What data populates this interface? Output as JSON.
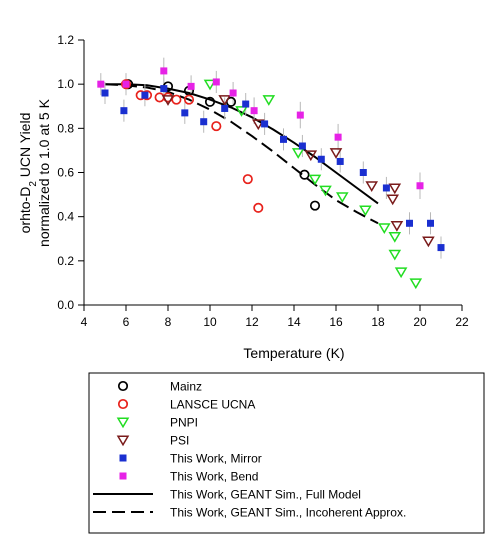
{
  "chart_data": {
    "type": "scatter",
    "title": "",
    "xlabel": "Temperature (K)",
    "ylabel_line1_pre": "orhto-D",
    "ylabel_line1_sub": "2",
    "ylabel_line1_post": " UCN Yield",
    "ylabel_line2": "normalized to 1.0 at 5 K",
    "xlim": [
      4,
      22
    ],
    "ylim": [
      0.0,
      1.2
    ],
    "xticks": [
      4,
      6,
      8,
      10,
      12,
      14,
      16,
      18,
      20,
      22
    ],
    "yticks": [
      0.0,
      0.2,
      0.4,
      0.6,
      0.8,
      1.0,
      1.2
    ],
    "ytick_labels": [
      "0.0",
      "0.2",
      "0.4",
      "0.6",
      "0.8",
      "1.0",
      "1.2"
    ],
    "grid": false,
    "legend_position": "bottom",
    "series": [
      {
        "name": "Mainz",
        "marker": "circle",
        "color": "#000000",
        "points": [
          [
            6.1,
            1.0
          ],
          [
            8.0,
            0.99
          ],
          [
            9.0,
            0.97
          ],
          [
            10.0,
            0.92
          ],
          [
            11.0,
            0.92
          ],
          [
            14.5,
            0.59
          ],
          [
            15.0,
            0.45
          ]
        ]
      },
      {
        "name": "LANSCE UCNA",
        "marker": "circle",
        "color": "#e8221c",
        "points": [
          [
            6.0,
            1.0
          ],
          [
            6.7,
            0.95
          ],
          [
            7.0,
            0.95
          ],
          [
            7.6,
            0.94
          ],
          [
            8.0,
            0.94
          ],
          [
            8.4,
            0.93
          ],
          [
            9.0,
            0.93
          ],
          [
            10.3,
            0.81
          ],
          [
            11.8,
            0.57
          ],
          [
            12.3,
            0.44
          ]
        ]
      },
      {
        "name": "PNPI",
        "marker": "triangle-down",
        "color": "#22dd22",
        "points": [
          [
            10.0,
            1.0
          ],
          [
            11.5,
            0.88
          ],
          [
            12.8,
            0.93
          ],
          [
            14.2,
            0.69
          ],
          [
            15.0,
            0.57
          ],
          [
            15.5,
            0.52
          ],
          [
            16.3,
            0.49
          ],
          [
            17.4,
            0.43
          ],
          [
            18.3,
            0.35
          ],
          [
            18.8,
            0.31
          ],
          [
            18.8,
            0.23
          ],
          [
            19.1,
            0.15
          ],
          [
            19.8,
            0.1
          ]
        ]
      },
      {
        "name": "PSI",
        "marker": "triangle-down",
        "color": "#7a1b1b",
        "points": [
          [
            8.0,
            0.93
          ],
          [
            10.7,
            0.93
          ],
          [
            12.3,
            0.82
          ],
          [
            14.8,
            0.68
          ],
          [
            16.0,
            0.69
          ],
          [
            17.7,
            0.54
          ],
          [
            18.7,
            0.48
          ],
          [
            18.8,
            0.53
          ],
          [
            18.9,
            0.36
          ],
          [
            20.4,
            0.29
          ]
        ]
      },
      {
        "name": "This Work, Mirror",
        "marker": "square",
        "color": "#1a2fd0",
        "points": [
          {
            "x": 5.0,
            "y": 0.96,
            "err": 0.05
          },
          {
            "x": 5.9,
            "y": 0.88,
            "err": 0.05
          },
          {
            "x": 6.9,
            "y": 0.95,
            "err": 0.05
          },
          {
            "x": 7.8,
            "y": 0.98,
            "err": 0.05
          },
          {
            "x": 8.8,
            "y": 0.87,
            "err": 0.05
          },
          {
            "x": 9.7,
            "y": 0.83,
            "err": 0.05
          },
          {
            "x": 10.7,
            "y": 0.89,
            "err": 0.05
          },
          {
            "x": 11.7,
            "y": 0.91,
            "err": 0.05
          },
          {
            "x": 12.6,
            "y": 0.82,
            "err": 0.05
          },
          {
            "x": 13.5,
            "y": 0.75,
            "err": 0.05
          },
          {
            "x": 14.4,
            "y": 0.72,
            "err": 0.05
          },
          {
            "x": 15.3,
            "y": 0.66,
            "err": 0.05
          },
          {
            "x": 16.2,
            "y": 0.65,
            "err": 0.05
          },
          {
            "x": 17.3,
            "y": 0.6,
            "err": 0.05
          },
          {
            "x": 18.4,
            "y": 0.53,
            "err": 0.05
          },
          {
            "x": 19.5,
            "y": 0.37,
            "err": 0.05
          },
          {
            "x": 20.5,
            "y": 0.37,
            "err": 0.05
          },
          {
            "x": 21.0,
            "y": 0.26,
            "err": 0.05
          }
        ]
      },
      {
        "name": "This Work, Bend",
        "marker": "square",
        "color": "#e622e6",
        "points": [
          {
            "x": 4.8,
            "y": 1.0,
            "err": 0.05
          },
          {
            "x": 6.0,
            "y": 1.0,
            "err": 0.05
          },
          {
            "x": 7.8,
            "y": 1.06,
            "err": 0.06
          },
          {
            "x": 9.1,
            "y": 0.99,
            "err": 0.05
          },
          {
            "x": 10.3,
            "y": 1.01,
            "err": 0.05
          },
          {
            "x": 11.1,
            "y": 0.96,
            "err": 0.05
          },
          {
            "x": 12.1,
            "y": 0.88,
            "err": 0.06
          },
          {
            "x": 14.3,
            "y": 0.86,
            "err": 0.06
          },
          {
            "x": 16.1,
            "y": 0.76,
            "err": 0.06
          },
          {
            "x": 20.0,
            "y": 0.54,
            "err": 0.06
          }
        ]
      },
      {
        "name": "This Work, GEANT Sim., Full Model",
        "marker": "line-solid",
        "color": "#000000",
        "points": [
          [
            5,
            1.0
          ],
          [
            6,
            1.0
          ],
          [
            7,
            0.995
          ],
          [
            8,
            0.98
          ],
          [
            9,
            0.96
          ],
          [
            10,
            0.93
          ],
          [
            11,
            0.895
          ],
          [
            12,
            0.85
          ],
          [
            13,
            0.795
          ],
          [
            14,
            0.735
          ],
          [
            15,
            0.67
          ],
          [
            16,
            0.6
          ],
          [
            17,
            0.53
          ],
          [
            18,
            0.46
          ]
        ]
      },
      {
        "name": "This Work, GEANT Sim., Incoherent Approx.",
        "marker": "line-dashed",
        "color": "#000000",
        "points": [
          [
            5,
            1.0
          ],
          [
            6,
            0.995
          ],
          [
            7,
            0.985
          ],
          [
            8,
            0.965
          ],
          [
            9,
            0.93
          ],
          [
            10,
            0.885
          ],
          [
            11,
            0.83
          ],
          [
            12,
            0.765
          ],
          [
            13,
            0.695
          ],
          [
            14,
            0.62
          ],
          [
            15,
            0.545
          ],
          [
            16,
            0.475
          ],
          [
            17,
            0.42
          ],
          [
            18,
            0.37
          ]
        ]
      }
    ]
  }
}
